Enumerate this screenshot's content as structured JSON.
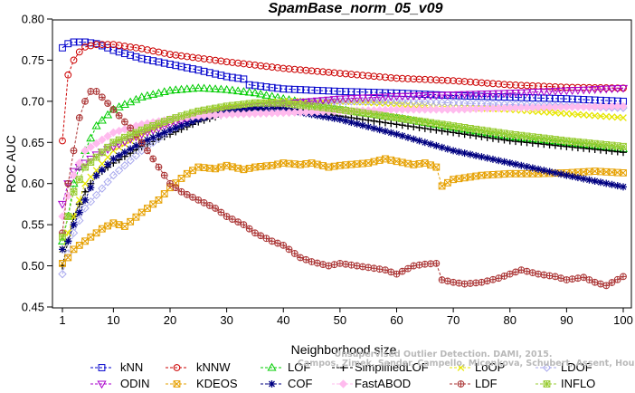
{
  "chart_data": {
    "type": "line",
    "title": "SpamBase_norm_05_v09",
    "xlabel": "Neighborhood size",
    "ylabel": "ROC AUC",
    "xlim": [
      1,
      100
    ],
    "ylim": [
      0.45,
      0.8
    ],
    "x_ticks": [
      1,
      10,
      20,
      30,
      40,
      50,
      60,
      70,
      80,
      90,
      100
    ],
    "y_ticks": [
      0.45,
      0.5,
      0.55,
      0.6,
      0.65,
      0.7,
      0.75,
      0.8
    ],
    "y_tick_labels": [
      "0.45",
      "0.50",
      "0.55",
      "0.60",
      "0.65",
      "0.70",
      "0.75",
      "0.80"
    ],
    "grid": false,
    "legend_placement": "bottom",
    "series": [
      {
        "name": "kNN",
        "color": "#0000cc",
        "marker": "square",
        "points": [
          [
            1,
            0.765
          ],
          [
            2,
            0.77
          ],
          [
            3,
            0.772
          ],
          [
            5,
            0.772
          ],
          [
            7,
            0.77
          ],
          [
            9,
            0.765
          ],
          [
            10,
            0.762
          ],
          [
            15,
            0.752
          ],
          [
            20,
            0.745
          ],
          [
            25,
            0.738
          ],
          [
            30,
            0.73
          ],
          [
            33,
            0.727
          ],
          [
            34,
            0.72
          ],
          [
            40,
            0.715
          ],
          [
            50,
            0.712
          ],
          [
            60,
            0.71
          ],
          [
            70,
            0.707
          ],
          [
            80,
            0.705
          ],
          [
            90,
            0.703
          ],
          [
            100,
            0.7
          ]
        ]
      },
      {
        "name": "kNNW",
        "color": "#cc0000",
        "marker": "circle",
        "points": [
          [
            1,
            0.652
          ],
          [
            2,
            0.732
          ],
          [
            3,
            0.75
          ],
          [
            4,
            0.76
          ],
          [
            5,
            0.766
          ],
          [
            7,
            0.769
          ],
          [
            10,
            0.769
          ],
          [
            15,
            0.764
          ],
          [
            20,
            0.757
          ],
          [
            30,
            0.748
          ],
          [
            40,
            0.74
          ],
          [
            50,
            0.734
          ],
          [
            60,
            0.728
          ],
          [
            70,
            0.725
          ],
          [
            80,
            0.72
          ],
          [
            90,
            0.717
          ],
          [
            100,
            0.716
          ]
        ]
      },
      {
        "name": "LOF",
        "color": "#00cc00",
        "marker": "triangle",
        "points": [
          [
            1,
            0.53
          ],
          [
            2,
            0.56
          ],
          [
            3,
            0.6
          ],
          [
            5,
            0.64
          ],
          [
            7,
            0.67
          ],
          [
            10,
            0.69
          ],
          [
            15,
            0.705
          ],
          [
            20,
            0.713
          ],
          [
            25,
            0.716
          ],
          [
            30,
            0.714
          ],
          [
            35,
            0.71
          ],
          [
            40,
            0.703
          ],
          [
            50,
            0.69
          ],
          [
            60,
            0.68
          ],
          [
            70,
            0.668
          ],
          [
            80,
            0.657
          ],
          [
            90,
            0.65
          ],
          [
            100,
            0.642
          ]
        ]
      },
      {
        "name": "SimplifiedLOF",
        "color": "#000000",
        "marker": "plus",
        "points": [
          [
            1,
            0.5
          ],
          [
            2,
            0.53
          ],
          [
            3,
            0.56
          ],
          [
            5,
            0.59
          ],
          [
            7,
            0.61
          ],
          [
            10,
            0.625
          ],
          [
            15,
            0.645
          ],
          [
            20,
            0.66
          ],
          [
            25,
            0.675
          ],
          [
            30,
            0.685
          ],
          [
            35,
            0.69
          ],
          [
            40,
            0.692
          ],
          [
            45,
            0.688
          ],
          [
            50,
            0.682
          ],
          [
            60,
            0.672
          ],
          [
            70,
            0.662
          ],
          [
            80,
            0.652
          ],
          [
            90,
            0.645
          ],
          [
            100,
            0.638
          ]
        ]
      },
      {
        "name": "LoOP",
        "color": "#e6e600",
        "marker": "x",
        "points": [
          [
            1,
            0.52
          ],
          [
            3,
            0.56
          ],
          [
            5,
            0.6
          ],
          [
            10,
            0.64
          ],
          [
            15,
            0.66
          ],
          [
            20,
            0.675
          ],
          [
            25,
            0.685
          ],
          [
            30,
            0.693
          ],
          [
            35,
            0.698
          ],
          [
            40,
            0.7
          ],
          [
            50,
            0.7
          ],
          [
            60,
            0.697
          ],
          [
            70,
            0.693
          ],
          [
            80,
            0.69
          ],
          [
            90,
            0.685
          ],
          [
            100,
            0.68
          ]
        ]
      },
      {
        "name": "LDOF",
        "color": "#aaaaee",
        "marker": "diamond",
        "points": [
          [
            1,
            0.49
          ],
          [
            3,
            0.54
          ],
          [
            5,
            0.57
          ],
          [
            10,
            0.61
          ],
          [
            15,
            0.64
          ],
          [
            20,
            0.665
          ],
          [
            25,
            0.68
          ],
          [
            30,
            0.69
          ],
          [
            40,
            0.698
          ],
          [
            50,
            0.7
          ],
          [
            60,
            0.7
          ],
          [
            70,
            0.698
          ],
          [
            80,
            0.696
          ],
          [
            90,
            0.694
          ],
          [
            100,
            0.692
          ]
        ]
      },
      {
        "name": "ODIN",
        "color": "#aa00cc",
        "marker": "triangle-down",
        "points": [
          [
            1,
            0.575
          ],
          [
            2,
            0.6
          ],
          [
            3,
            0.615
          ],
          [
            5,
            0.625
          ],
          [
            7,
            0.635
          ],
          [
            10,
            0.645
          ],
          [
            15,
            0.66
          ],
          [
            20,
            0.672
          ],
          [
            25,
            0.682
          ],
          [
            30,
            0.69
          ],
          [
            40,
            0.697
          ],
          [
            50,
            0.703
          ],
          [
            60,
            0.706
          ],
          [
            70,
            0.708
          ],
          [
            80,
            0.71
          ],
          [
            90,
            0.713
          ],
          [
            100,
            0.716
          ]
        ]
      },
      {
        "name": "KDEOS",
        "color": "#e6a000",
        "marker": "square-x",
        "points": [
          [
            1,
            0.503
          ],
          [
            2,
            0.51
          ],
          [
            3,
            0.52
          ],
          [
            5,
            0.53
          ],
          [
            8,
            0.545
          ],
          [
            10,
            0.552
          ],
          [
            12,
            0.548
          ],
          [
            15,
            0.565
          ],
          [
            18,
            0.58
          ],
          [
            20,
            0.595
          ],
          [
            23,
            0.612
          ],
          [
            25,
            0.62
          ],
          [
            28,
            0.618
          ],
          [
            30,
            0.622
          ],
          [
            33,
            0.617
          ],
          [
            35,
            0.62
          ],
          [
            38,
            0.622
          ],
          [
            40,
            0.625
          ],
          [
            43,
            0.623
          ],
          [
            45,
            0.625
          ],
          [
            48,
            0.62
          ],
          [
            50,
            0.622
          ],
          [
            55,
            0.625
          ],
          [
            58,
            0.63
          ],
          [
            60,
            0.627
          ],
          [
            63,
            0.623
          ],
          [
            65,
            0.625
          ],
          [
            67,
            0.62
          ],
          [
            68,
            0.597
          ],
          [
            70,
            0.605
          ],
          [
            75,
            0.61
          ],
          [
            80,
            0.612
          ],
          [
            85,
            0.612
          ],
          [
            90,
            0.613
          ],
          [
            95,
            0.615
          ],
          [
            100,
            0.613
          ]
        ]
      },
      {
        "name": "COF",
        "color": "#000080",
        "marker": "star",
        "points": [
          [
            1,
            0.52
          ],
          [
            2,
            0.53
          ],
          [
            3,
            0.55
          ],
          [
            5,
            0.58
          ],
          [
            7,
            0.61
          ],
          [
            10,
            0.63
          ],
          [
            15,
            0.65
          ],
          [
            20,
            0.665
          ],
          [
            25,
            0.678
          ],
          [
            30,
            0.688
          ],
          [
            35,
            0.692
          ],
          [
            40,
            0.69
          ],
          [
            50,
            0.678
          ],
          [
            60,
            0.66
          ],
          [
            65,
            0.65
          ],
          [
            70,
            0.64
          ],
          [
            80,
            0.625
          ],
          [
            90,
            0.61
          ],
          [
            100,
            0.596
          ]
        ]
      },
      {
        "name": "FastABOD",
        "color": "#ffbbee",
        "marker": "diamond-filled",
        "points": [
          [
            1,
            0.56
          ],
          [
            3,
            0.61
          ],
          [
            5,
            0.64
          ],
          [
            10,
            0.662
          ],
          [
            15,
            0.672
          ],
          [
            20,
            0.678
          ],
          [
            25,
            0.682
          ],
          [
            30,
            0.684
          ],
          [
            40,
            0.686
          ],
          [
            50,
            0.688
          ],
          [
            60,
            0.69
          ],
          [
            70,
            0.69
          ],
          [
            80,
            0.692
          ],
          [
            90,
            0.693
          ],
          [
            100,
            0.694
          ]
        ]
      },
      {
        "name": "LDF",
        "color": "#aa3333",
        "marker": "circle-plus",
        "points": [
          [
            1,
            0.54
          ],
          [
            2,
            0.6
          ],
          [
            3,
            0.64
          ],
          [
            4,
            0.68
          ],
          [
            5,
            0.7
          ],
          [
            6,
            0.712
          ],
          [
            7,
            0.712
          ],
          [
            8,
            0.705
          ],
          [
            10,
            0.69
          ],
          [
            12,
            0.675
          ],
          [
            14,
            0.66
          ],
          [
            16,
            0.64
          ],
          [
            18,
            0.62
          ],
          [
            20,
            0.6
          ],
          [
            22,
            0.59
          ],
          [
            25,
            0.58
          ],
          [
            28,
            0.57
          ],
          [
            30,
            0.56
          ],
          [
            33,
            0.55
          ],
          [
            35,
            0.54
          ],
          [
            38,
            0.53
          ],
          [
            40,
            0.525
          ],
          [
            43,
            0.51
          ],
          [
            45,
            0.505
          ],
          [
            48,
            0.5
          ],
          [
            50,
            0.503
          ],
          [
            53,
            0.5
          ],
          [
            55,
            0.498
          ],
          [
            58,
            0.495
          ],
          [
            60,
            0.49
          ],
          [
            63,
            0.5
          ],
          [
            65,
            0.502
          ],
          [
            67,
            0.503
          ],
          [
            68,
            0.483
          ],
          [
            70,
            0.48
          ],
          [
            72,
            0.478
          ],
          [
            75,
            0.48
          ],
          [
            78,
            0.485
          ],
          [
            80,
            0.49
          ],
          [
            82,
            0.495
          ],
          [
            85,
            0.49
          ],
          [
            88,
            0.487
          ],
          [
            90,
            0.483
          ],
          [
            93,
            0.486
          ],
          [
            95,
            0.48
          ],
          [
            97,
            0.476
          ],
          [
            100,
            0.487
          ]
        ]
      },
      {
        "name": "INFLO",
        "color": "#99cc33",
        "marker": "square-star",
        "points": [
          [
            1,
            0.535
          ],
          [
            2,
            0.56
          ],
          [
            3,
            0.59
          ],
          [
            5,
            0.62
          ],
          [
            10,
            0.65
          ],
          [
            15,
            0.665
          ],
          [
            20,
            0.678
          ],
          [
            25,
            0.688
          ],
          [
            30,
            0.694
          ],
          [
            35,
            0.698
          ],
          [
            40,
            0.698
          ],
          [
            50,
            0.69
          ],
          [
            60,
            0.68
          ],
          [
            70,
            0.67
          ],
          [
            80,
            0.66
          ],
          [
            90,
            0.652
          ],
          [
            100,
            0.645
          ]
        ]
      }
    ],
    "watermark": [
      "Unsupervised Outlier Detection. DAMI, 2015.",
      "Campos, Zimek, Sander, Campello, Micenkova, Schubert, Assent, Houle"
    ]
  }
}
